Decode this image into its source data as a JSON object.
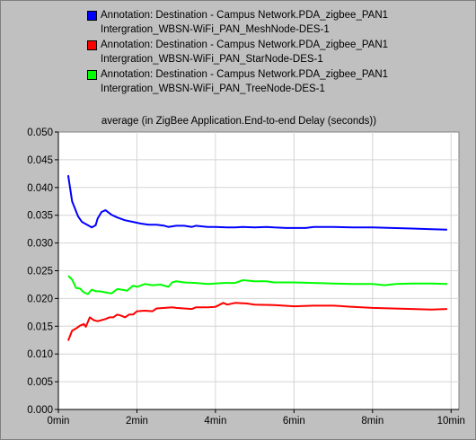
{
  "colors": {
    "background": "#c0c0c0",
    "plot_background": "#ffffff",
    "grid": "#d4d4d4"
  },
  "chart_data": {
    "type": "line",
    "title": "average (in ZigBee Application.End-to-end Delay (seconds))",
    "xlabel": "",
    "ylabel": "",
    "xlim": [
      0,
      10.2
    ],
    "ylim": [
      0,
      0.05
    ],
    "x_ticks": [
      "0min",
      "2min",
      "4min",
      "6min",
      "8min",
      "10min"
    ],
    "x_tick_values": [
      0,
      2,
      4,
      6,
      8,
      10
    ],
    "y_ticks": [
      "0.000",
      "0.005",
      "0.010",
      "0.015",
      "0.020",
      "0.025",
      "0.030",
      "0.035",
      "0.040",
      "0.045",
      "0.050"
    ],
    "y_tick_values": [
      0,
      0.005,
      0.01,
      0.015,
      0.02,
      0.025,
      0.03,
      0.035,
      0.04,
      0.045,
      0.05
    ],
    "grid": true,
    "legend_position": "top",
    "series": [
      {
        "name_line1": "Annotation: Destination - Campus Network.PDA_zigbee_PAN1",
        "name_line2": "Intergration_WBSN-WiFi_PAN_MeshNode-DES-1",
        "color": "#0000ff",
        "points": [
          [
            0.25,
            0.0422
          ],
          [
            0.35,
            0.0375
          ],
          [
            0.5,
            0.0348
          ],
          [
            0.6,
            0.0338
          ],
          [
            0.75,
            0.0332
          ],
          [
            0.85,
            0.0328
          ],
          [
            0.95,
            0.0332
          ],
          [
            1.0,
            0.0344
          ],
          [
            1.1,
            0.0356
          ],
          [
            1.2,
            0.0359
          ],
          [
            1.35,
            0.0351
          ],
          [
            1.5,
            0.0346
          ],
          [
            1.7,
            0.0341
          ],
          [
            1.9,
            0.0338
          ],
          [
            2.1,
            0.0335
          ],
          [
            2.3,
            0.0333
          ],
          [
            2.5,
            0.0333
          ],
          [
            2.7,
            0.0331
          ],
          [
            2.8,
            0.0329
          ],
          [
            3.0,
            0.0331
          ],
          [
            3.2,
            0.0331
          ],
          [
            3.4,
            0.0329
          ],
          [
            3.5,
            0.0331
          ],
          [
            3.8,
            0.0329
          ],
          [
            4.0,
            0.0329
          ],
          [
            4.3,
            0.0328
          ],
          [
            4.5,
            0.0328
          ],
          [
            4.7,
            0.0329
          ],
          [
            5.0,
            0.0328
          ],
          [
            5.3,
            0.0329
          ],
          [
            5.5,
            0.0328
          ],
          [
            5.8,
            0.0327
          ],
          [
            6.0,
            0.0327
          ],
          [
            6.3,
            0.0327
          ],
          [
            6.5,
            0.0329
          ],
          [
            7.0,
            0.0329
          ],
          [
            7.5,
            0.0328
          ],
          [
            7.8,
            0.0328
          ],
          [
            8.0,
            0.0328
          ],
          [
            8.5,
            0.0327
          ],
          [
            9.0,
            0.0326
          ],
          [
            9.5,
            0.0325
          ],
          [
            9.9,
            0.0324
          ]
        ]
      },
      {
        "name_line1": "Annotation: Destination - Campus Network.PDA_zigbee_PAN1",
        "name_line2": "Intergration_WBSN-WiFi_PAN_StarNode-DES-1",
        "color": "#ff0000",
        "points": [
          [
            0.25,
            0.0124
          ],
          [
            0.35,
            0.0142
          ],
          [
            0.45,
            0.0146
          ],
          [
            0.55,
            0.0151
          ],
          [
            0.65,
            0.0154
          ],
          [
            0.7,
            0.0149
          ],
          [
            0.8,
            0.0166
          ],
          [
            0.9,
            0.0161
          ],
          [
            1.0,
            0.0159
          ],
          [
            1.1,
            0.0161
          ],
          [
            1.2,
            0.0163
          ],
          [
            1.3,
            0.0166
          ],
          [
            1.4,
            0.0166
          ],
          [
            1.5,
            0.0171
          ],
          [
            1.6,
            0.0169
          ],
          [
            1.7,
            0.0166
          ],
          [
            1.8,
            0.0171
          ],
          [
            1.9,
            0.0171
          ],
          [
            2.0,
            0.0177
          ],
          [
            2.2,
            0.0178
          ],
          [
            2.4,
            0.0177
          ],
          [
            2.5,
            0.0182
          ],
          [
            2.7,
            0.0183
          ],
          [
            2.9,
            0.0184
          ],
          [
            3.0,
            0.0183
          ],
          [
            3.2,
            0.0182
          ],
          [
            3.4,
            0.0181
          ],
          [
            3.5,
            0.0184
          ],
          [
            3.8,
            0.0184
          ],
          [
            4.0,
            0.0185
          ],
          [
            4.2,
            0.0192
          ],
          [
            4.3,
            0.0189
          ],
          [
            4.5,
            0.0192
          ],
          [
            4.8,
            0.0191
          ],
          [
            5.0,
            0.0189
          ],
          [
            5.5,
            0.0188
          ],
          [
            6.0,
            0.0186
          ],
          [
            6.5,
            0.0187
          ],
          [
            7.0,
            0.0187
          ],
          [
            7.5,
            0.0185
          ],
          [
            8.0,
            0.0183
          ],
          [
            8.5,
            0.0182
          ],
          [
            9.0,
            0.0181
          ],
          [
            9.5,
            0.018
          ],
          [
            9.9,
            0.0181
          ]
        ]
      },
      {
        "name_line1": "Annotation: Destination - Campus Network.PDA_zigbee_PAN1",
        "name_line2": "Intergration_WBSN-WiFi_PAN_TreeNode-DES-1",
        "color": "#00ff00",
        "points": [
          [
            0.25,
            0.0241
          ],
          [
            0.35,
            0.0234
          ],
          [
            0.45,
            0.0219
          ],
          [
            0.55,
            0.0218
          ],
          [
            0.65,
            0.0211
          ],
          [
            0.75,
            0.0208
          ],
          [
            0.85,
            0.0216
          ],
          [
            0.95,
            0.0213
          ],
          [
            1.05,
            0.0213
          ],
          [
            1.2,
            0.0211
          ],
          [
            1.35,
            0.0209
          ],
          [
            1.5,
            0.0217
          ],
          [
            1.6,
            0.0216
          ],
          [
            1.75,
            0.0214
          ],
          [
            1.9,
            0.0223
          ],
          [
            2.0,
            0.0221
          ],
          [
            2.2,
            0.0226
          ],
          [
            2.4,
            0.0224
          ],
          [
            2.6,
            0.0225
          ],
          [
            2.8,
            0.0221
          ],
          [
            2.9,
            0.0229
          ],
          [
            3.0,
            0.0231
          ],
          [
            3.2,
            0.0229
          ],
          [
            3.5,
            0.0228
          ],
          [
            3.8,
            0.0226
          ],
          [
            4.0,
            0.0227
          ],
          [
            4.2,
            0.0228
          ],
          [
            4.5,
            0.0228
          ],
          [
            4.7,
            0.0233
          ],
          [
            5.0,
            0.0231
          ],
          [
            5.3,
            0.0231
          ],
          [
            5.5,
            0.0229
          ],
          [
            6.0,
            0.0229
          ],
          [
            6.5,
            0.0228
          ],
          [
            7.0,
            0.0227
          ],
          [
            7.5,
            0.0226
          ],
          [
            8.0,
            0.0226
          ],
          [
            8.3,
            0.0224
          ],
          [
            8.6,
            0.0226
          ],
          [
            9.0,
            0.0227
          ],
          [
            9.5,
            0.0227
          ],
          [
            9.9,
            0.0226
          ]
        ]
      }
    ]
  }
}
